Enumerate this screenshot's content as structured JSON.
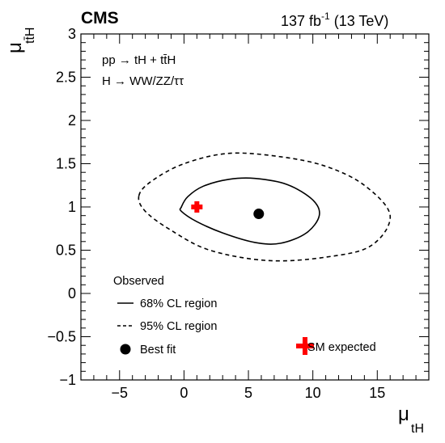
{
  "header": {
    "experiment": "CMS",
    "lumi_value": "137 fb",
    "lumi_exp": "-1",
    "energy": " (13 TeV)"
  },
  "annotation": {
    "process": "pp → tH + tt̄H",
    "decay": "H → WW/ZZ/ττ"
  },
  "legend": {
    "title": "Observed",
    "items": [
      {
        "label": "68% CL region",
        "style": "solid"
      },
      {
        "label": "95% CL region",
        "style": "dashed"
      },
      {
        "label": "Best fit",
        "marker": "circle"
      },
      {
        "label": "SM expected",
        "marker": "cross",
        "color": "#ff0000"
      }
    ]
  },
  "chart_data": {
    "type": "scatter",
    "title": "",
    "xlabel_main": "μ",
    "xlabel_sub": "tH",
    "ylabel_main": "μ",
    "ylabel_sub": "tt̄H",
    "xlim": [
      -8,
      19
    ],
    "ylim": [
      -1,
      3
    ],
    "xticks": [
      -5,
      0,
      5,
      10,
      15
    ],
    "xtick_labels": [
      "−5",
      "0",
      "5",
      "10",
      "15"
    ],
    "yticks": [
      -1,
      -0.5,
      0,
      0.5,
      1,
      1.5,
      2,
      2.5,
      3
    ],
    "ytick_labels": [
      "−1",
      "−0.5",
      "0",
      "0.5",
      "1",
      "1.5",
      "2",
      "2.5",
      "3"
    ],
    "grid": false,
    "best_fit": {
      "x": 5.8,
      "y": 0.92
    },
    "sm_expected": {
      "x": 1.0,
      "y": 1.0
    },
    "contours": [
      {
        "name": "68% CL region",
        "style": "solid",
        "points": [
          [
            -0.2,
            1.0
          ],
          [
            0.3,
            1.12
          ],
          [
            1.5,
            1.24
          ],
          [
            3.5,
            1.32
          ],
          [
            5.5,
            1.33
          ],
          [
            8.0,
            1.26
          ],
          [
            10.0,
            1.08
          ],
          [
            10.5,
            0.9
          ],
          [
            9.5,
            0.7
          ],
          [
            7.5,
            0.58
          ],
          [
            5.5,
            0.59
          ],
          [
            3.0,
            0.7
          ],
          [
            1.0,
            0.83
          ],
          [
            -0.2,
            0.95
          ]
        ]
      },
      {
        "name": "95% CL region",
        "style": "dashed",
        "points": [
          [
            -3.5,
            1.13
          ],
          [
            -2.5,
            1.3
          ],
          [
            0.0,
            1.5
          ],
          [
            3.5,
            1.62
          ],
          [
            7.5,
            1.58
          ],
          [
            11.0,
            1.47
          ],
          [
            14.0,
            1.25
          ],
          [
            16.0,
            0.9
          ],
          [
            14.5,
            0.55
          ],
          [
            11.0,
            0.42
          ],
          [
            6.5,
            0.38
          ],
          [
            2.0,
            0.5
          ],
          [
            -1.0,
            0.73
          ],
          [
            -3.0,
            0.95
          ]
        ]
      }
    ]
  }
}
